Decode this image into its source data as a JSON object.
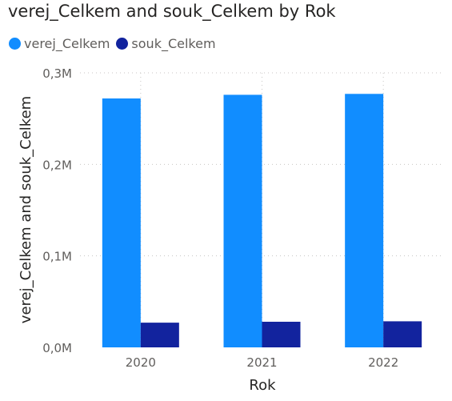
{
  "title": "verej_Celkem and souk_Celkem by Rok",
  "legend": [
    {
      "name": "verej_Celkem",
      "color": "#118DFF"
    },
    {
      "name": "souk_Celkem",
      "color": "#12239E"
    }
  ],
  "chart_data": {
    "type": "bar",
    "title": "verej_Celkem and souk_Celkem by Rok",
    "xlabel": "Rok",
    "ylabel": "verej_Celkem and souk_Celkem",
    "categories": [
      "2020",
      "2021",
      "2022"
    ],
    "series": [
      {
        "name": "verej_Celkem",
        "color": "#118DFF",
        "values": [
          272000,
          276000,
          277000
        ]
      },
      {
        "name": "souk_Celkem",
        "color": "#12239E",
        "values": [
          27000,
          28000,
          28500
        ]
      }
    ],
    "ylim": [
      0,
      300000
    ],
    "yticks": [
      0,
      100000,
      200000,
      300000
    ],
    "ytick_labels": [
      "0,0M",
      "0,1M",
      "0,2M",
      "0,3M"
    ],
    "grid": true,
    "legend_position": "top-left"
  }
}
